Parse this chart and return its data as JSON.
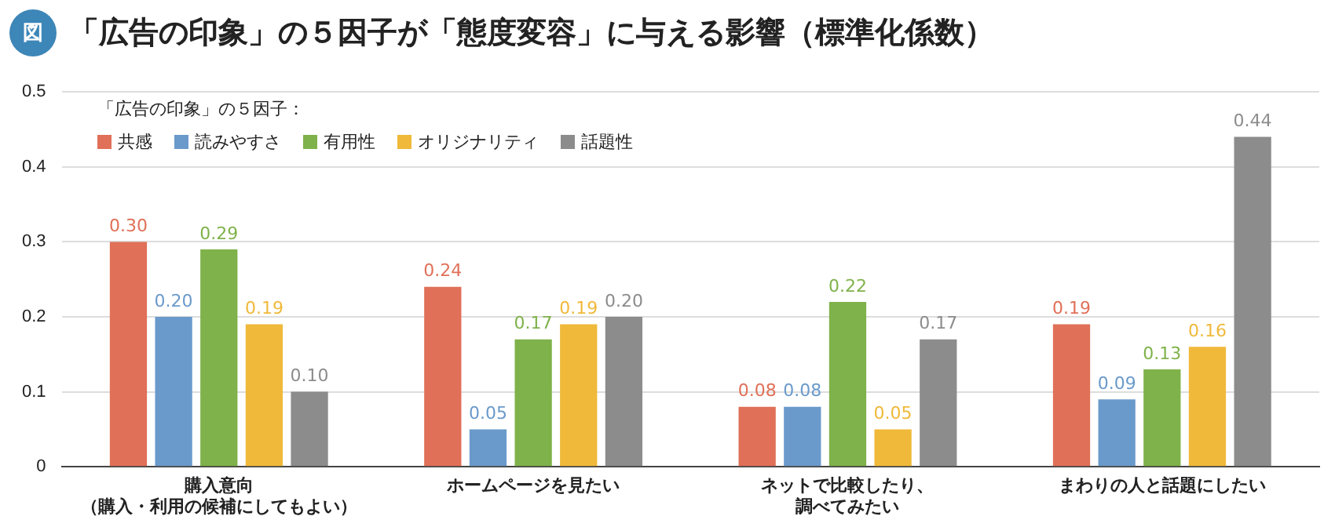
{
  "chart_data": {
    "type": "bar",
    "title": "「広告の印象」の５因子が「態度変容」に与える影響（標準化係数）",
    "annotations": [
      "図"
    ],
    "legend_title": "「広告の印象」の５因子：",
    "legend": "top left",
    "grid": "y",
    "categories": [
      "購入意向（購入・利用の候補にしてもよい）",
      "ホームページを見たい",
      "ネットで比較したり、調べてみたい",
      "まわりの人と話題にしたい"
    ],
    "ylim": [
      0,
      0.5
    ],
    "yticks": [
      0,
      0.1,
      0.2,
      0.3,
      0.4,
      0.5
    ],
    "series": [
      {
        "name": "共感",
        "color": "#e07058",
        "values": [
          0.3,
          0.24,
          0.08,
          0.19
        ],
        "value_labels": [
          "0.30",
          "0.24",
          "0.08",
          "0.19"
        ]
      },
      {
        "name": "読みやすさ",
        "color": "#6a9acb",
        "values": [
          0.2,
          0.05,
          0.08,
          0.09
        ],
        "value_labels": [
          "0.20",
          "0.05",
          "0.08",
          "0.09"
        ]
      },
      {
        "name": "有用性",
        "color": "#7fb24a",
        "values": [
          0.29,
          0.17,
          0.22,
          0.13
        ],
        "value_labels": [
          "0.29",
          "0.17",
          "0.22",
          "0.13"
        ]
      },
      {
        "name": "オリジナリティ",
        "color": "#f0b93a",
        "values": [
          0.19,
          0.19,
          0.05,
          0.16
        ],
        "value_labels": [
          "0.19",
          "0.19",
          "0.05",
          "0.16"
        ]
      },
      {
        "name": "話題性",
        "color": "#8c8c8c",
        "values": [
          0.1,
          0.2,
          0.17,
          0.44
        ],
        "value_labels": [
          "0.10",
          "0.20",
          "0.17",
          "0.44"
        ]
      }
    ]
  }
}
